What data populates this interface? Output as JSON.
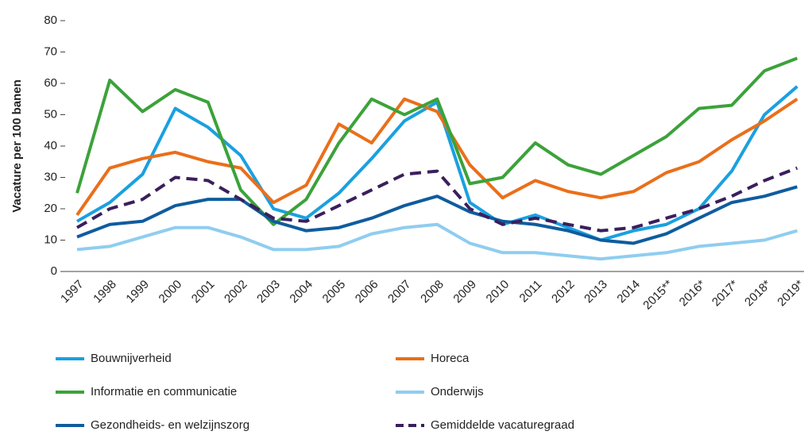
{
  "chart_data": {
    "type": "line",
    "y_label": "Vacature per 100 banen",
    "categories": [
      "1997",
      "1998",
      "1999",
      "2000",
      "2001",
      "2002",
      "2003",
      "2004",
      "2005",
      "2006",
      "2007",
      "2008",
      "2009",
      "2010",
      "2011",
      "2012",
      "2013",
      "2014",
      "2015**",
      "2016*",
      "2017*",
      "2018*",
      "2019*"
    ],
    "series": [
      {
        "name": "Bouwnijverheid",
        "color": "#1aa0e0",
        "values": [
          16,
          22,
          31,
          52,
          46,
          37,
          20,
          17,
          25,
          36,
          48,
          54,
          22,
          15,
          18,
          14,
          10,
          13,
          15,
          20,
          32,
          50,
          59
        ]
      },
      {
        "name": "Horeca",
        "color": "#ea6f1a",
        "values": [
          18,
          33,
          36,
          38,
          35,
          33,
          22,
          27.5,
          47,
          41,
          55,
          51,
          34,
          23.5,
          29,
          25.5,
          23.5,
          25.5,
          31.5,
          35,
          42,
          48,
          55
        ]
      },
      {
        "name": "Informatie en communicatie",
        "color": "#3ca23a",
        "values": [
          25,
          61,
          51,
          58,
          54,
          26,
          15,
          23,
          41,
          55,
          50,
          55,
          28,
          30,
          41,
          34,
          31,
          37,
          43,
          52,
          53,
          64,
          68
        ]
      },
      {
        "name": "Onderwijs",
        "color": "#8fcdf0",
        "values": [
          7,
          8,
          11,
          14,
          14,
          11,
          7,
          7,
          8,
          12,
          14,
          15,
          9,
          6,
          6,
          5,
          4,
          5,
          6,
          8,
          9,
          10,
          13
        ]
      },
      {
        "name": "Gezondheids- en welzijnszorg",
        "color": "#0f5c9e",
        "values": [
          11,
          15,
          16,
          21,
          23,
          23,
          16,
          13,
          14,
          17,
          21,
          24,
          19,
          16,
          15,
          13,
          10,
          9,
          12,
          17,
          22,
          24,
          27
        ]
      },
      {
        "name": "Gemiddelde vacaturegraad",
        "color": "#3a1f5c",
        "dashed": true,
        "values": [
          14,
          20,
          23,
          30,
          29,
          23,
          17,
          16,
          21,
          26,
          31,
          32,
          20,
          15,
          17,
          15,
          13,
          14,
          17,
          20,
          24,
          29,
          33
        ]
      }
    ],
    "ylim": [
      0,
      80
    ],
    "yticks": [
      0,
      10,
      20,
      30,
      40,
      50,
      60,
      70,
      80
    ]
  }
}
